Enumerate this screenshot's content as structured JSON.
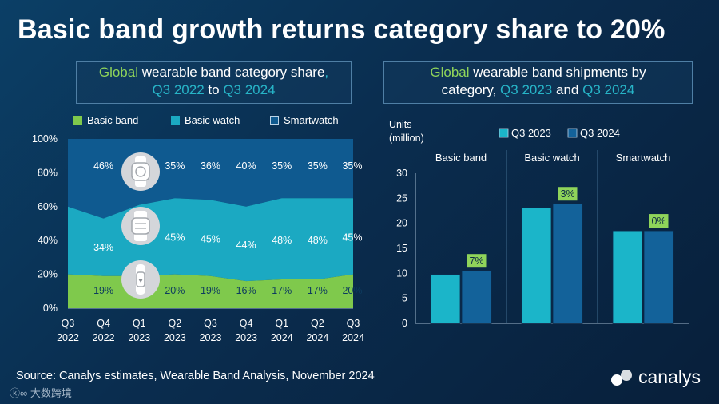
{
  "title": "Basic band growth returns category share to 20%",
  "left_panel": {
    "title_parts": [
      "Global",
      " wearable band category share",
      ",",
      "Q3 2022",
      " to ",
      "Q3 2024"
    ]
  },
  "right_panel": {
    "title_parts": [
      "Global",
      " wearable band shipments by",
      "category, ",
      "Q3 2023",
      " and ",
      "Q3 2024"
    ]
  },
  "colors": {
    "basic_band": "#7fc94c",
    "basic_watch": "#1ba9c2",
    "smartwatch": "#0f5a90",
    "q3_2023": "#1bb5c9",
    "q3_2024": "#13629a",
    "label_green": "#8fd45a"
  },
  "icons": [
    "smartwatch-icon",
    "basic-watch-icon",
    "basic-band-icon"
  ],
  "source": "Source: Canalys estimates, Wearable Band Analysis, November 2024",
  "brand": "canalys",
  "watermark": "大数跨境",
  "chart_data": [
    {
      "type": "area",
      "stacked": true,
      "categories": [
        [
          "Q3",
          "2022"
        ],
        [
          "Q4",
          "2022"
        ],
        [
          "Q1",
          "2023"
        ],
        [
          "Q2",
          "2023"
        ],
        [
          "Q3",
          "2023"
        ],
        [
          "Q4",
          "2023"
        ],
        [
          "Q1",
          "2024"
        ],
        [
          "Q2",
          "2024"
        ],
        [
          "Q3",
          "2024"
        ]
      ],
      "series": [
        {
          "name": "Basic band",
          "values": [
            20,
            19,
            19,
            20,
            19,
            16,
            17,
            17,
            20
          ],
          "labels": [
            "",
            "19%",
            "",
            "20%",
            "19%",
            "16%",
            "17%",
            "17%",
            "20%"
          ]
        },
        {
          "name": "Basic watch",
          "values": [
            40,
            34,
            42,
            45,
            45,
            44,
            48,
            48,
            45
          ],
          "labels": [
            "",
            "34%",
            "",
            "45%",
            "45%",
            "44%",
            "48%",
            "48%",
            "45%"
          ]
        },
        {
          "name": "Smartwatch",
          "values": [
            40,
            46,
            39,
            35,
            36,
            40,
            35,
            35,
            35
          ],
          "labels": [
            "",
            "46%",
            "",
            "35%",
            "36%",
            "40%",
            "35%",
            "35%",
            "35%"
          ]
        }
      ],
      "yticks": [
        "0%",
        "20%",
        "40%",
        "60%",
        "80%",
        "100%"
      ],
      "ylim": [
        0,
        100
      ],
      "legend": "top"
    },
    {
      "type": "bar",
      "groups": [
        "Basic band",
        "Basic watch",
        "Smartwatch"
      ],
      "series": [
        {
          "name": "Q3 2023",
          "values": [
            9.8,
            23.1,
            18.5
          ]
        },
        {
          "name": "Q3 2024",
          "values": [
            10.5,
            23.9,
            18.5
          ]
        }
      ],
      "growth_labels": [
        "7%",
        "3%",
        "0%"
      ],
      "ylabel": "Units\n(million)",
      "ylabel_lines": [
        "Units",
        "(million)"
      ],
      "yticks": [
        0,
        5,
        10,
        15,
        20,
        25,
        30
      ],
      "ylim": [
        0,
        30
      ],
      "legend": "top"
    }
  ]
}
